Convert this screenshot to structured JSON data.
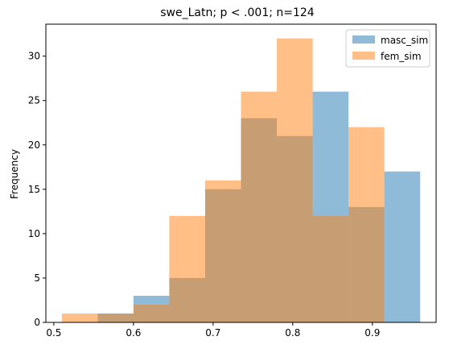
{
  "chart_data": {
    "type": "histogram",
    "title": "swe_Latn; p < .001; n=124",
    "xlabel": "",
    "ylabel": "Frequency",
    "xlim": [
      0.49,
      0.98
    ],
    "ylim": [
      0,
      33.6
    ],
    "xticks": [
      0.5,
      0.6,
      0.7,
      0.8,
      0.9
    ],
    "yticks": [
      0,
      5,
      10,
      15,
      20,
      25,
      30
    ],
    "legend_position": "top-right",
    "series": [
      {
        "name": "masc_sim",
        "color": "#1f77b4",
        "alpha": 0.5,
        "bin_edges": [
          0.555,
          0.6,
          0.645,
          0.69,
          0.735,
          0.78,
          0.825,
          0.87,
          0.915,
          0.96
        ],
        "counts": [
          1,
          3,
          5,
          15,
          23,
          21,
          26,
          13,
          17
        ]
      },
      {
        "name": "fem_sim",
        "color": "#ff7f0e",
        "alpha": 0.5,
        "bin_edges": [
          0.51,
          0.555,
          0.6,
          0.645,
          0.69,
          0.735,
          0.78,
          0.825,
          0.87,
          0.915
        ],
        "counts": [
          1,
          1,
          2,
          12,
          16,
          26,
          32,
          12,
          22
        ]
      }
    ]
  }
}
